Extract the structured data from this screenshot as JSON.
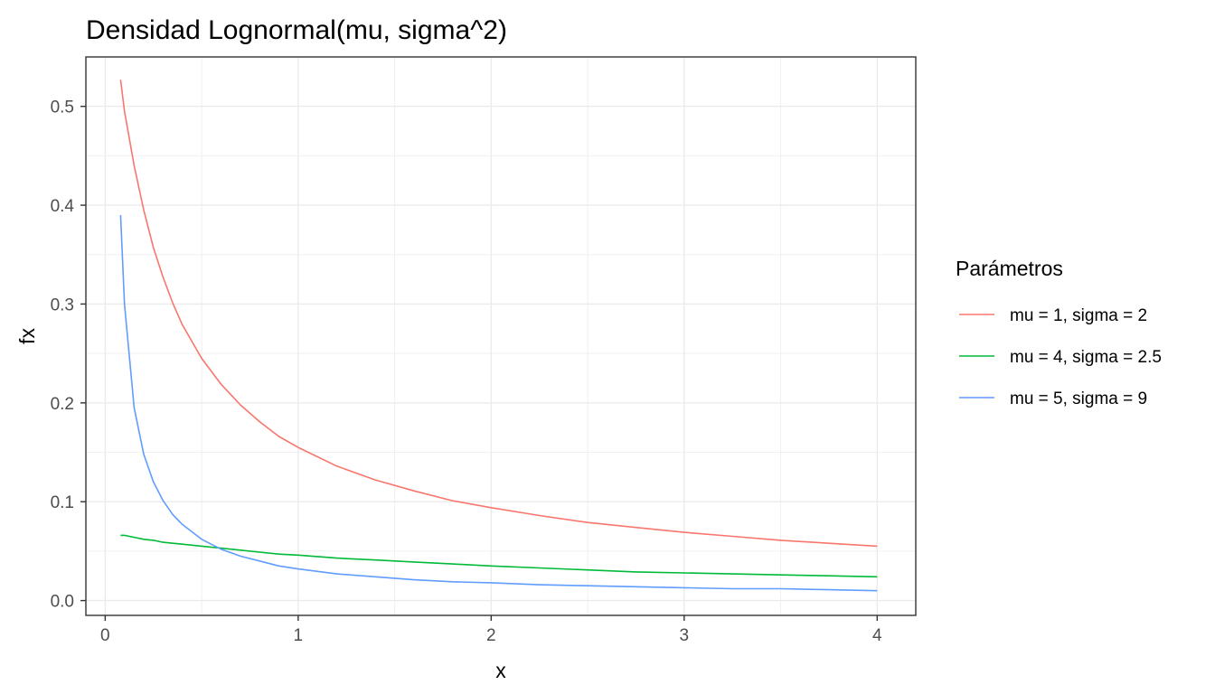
{
  "chart_data": {
    "type": "line",
    "title": "Densidad Lognormal(mu, sigma^2)",
    "xlabel": "x",
    "ylabel": "fx",
    "xlim": [
      -0.1,
      4.2
    ],
    "ylim": [
      -0.015,
      0.55
    ],
    "x_ticks": [
      0,
      1,
      2,
      3,
      4
    ],
    "x_tick_labels": [
      "0",
      "1",
      "2",
      "3",
      "4"
    ],
    "y_ticks": [
      0.0,
      0.1,
      0.2,
      0.3,
      0.4,
      0.5
    ],
    "y_tick_labels": [
      "0.0",
      "0.1",
      "0.2",
      "0.3",
      "0.4",
      "0.5"
    ],
    "grid": true,
    "legend": {
      "title": "Parámetros",
      "position": "right"
    },
    "x": [
      0.08,
      0.1,
      0.15,
      0.2,
      0.25,
      0.3,
      0.35,
      0.4,
      0.5,
      0.6,
      0.7,
      0.8,
      0.9,
      1.0,
      1.2,
      1.4,
      1.6,
      1.8,
      2.0,
      2.25,
      2.5,
      2.75,
      3.0,
      3.25,
      3.5,
      3.75,
      4.0
    ],
    "series": [
      {
        "name": "mu = 1, sigma = 2",
        "color": "#F8766D",
        "values": [
          0.527,
          0.495,
          0.44,
          0.395,
          0.357,
          0.327,
          0.301,
          0.279,
          0.245,
          0.219,
          0.198,
          0.181,
          0.166,
          0.155,
          0.136,
          0.122,
          0.111,
          0.101,
          0.094,
          0.086,
          0.079,
          0.074,
          0.069,
          0.065,
          0.061,
          0.058,
          0.055
        ]
      },
      {
        "name": "mu = 4, sigma = 2.5",
        "color": "#00BA38",
        "values": [
          0.066,
          0.066,
          0.064,
          0.062,
          0.061,
          0.059,
          0.058,
          0.057,
          0.055,
          0.053,
          0.051,
          0.049,
          0.047,
          0.046,
          0.043,
          0.041,
          0.039,
          0.037,
          0.035,
          0.033,
          0.031,
          0.029,
          0.028,
          0.027,
          0.026,
          0.025,
          0.024
        ]
      },
      {
        "name": "mu = 5, sigma = 9",
        "color": "#619CFF",
        "values": [
          0.39,
          0.3,
          0.195,
          0.148,
          0.12,
          0.101,
          0.087,
          0.077,
          0.062,
          0.052,
          0.045,
          0.04,
          0.035,
          0.032,
          0.027,
          0.024,
          0.021,
          0.019,
          0.018,
          0.016,
          0.015,
          0.014,
          0.013,
          0.012,
          0.012,
          0.011,
          0.01
        ]
      }
    ]
  }
}
